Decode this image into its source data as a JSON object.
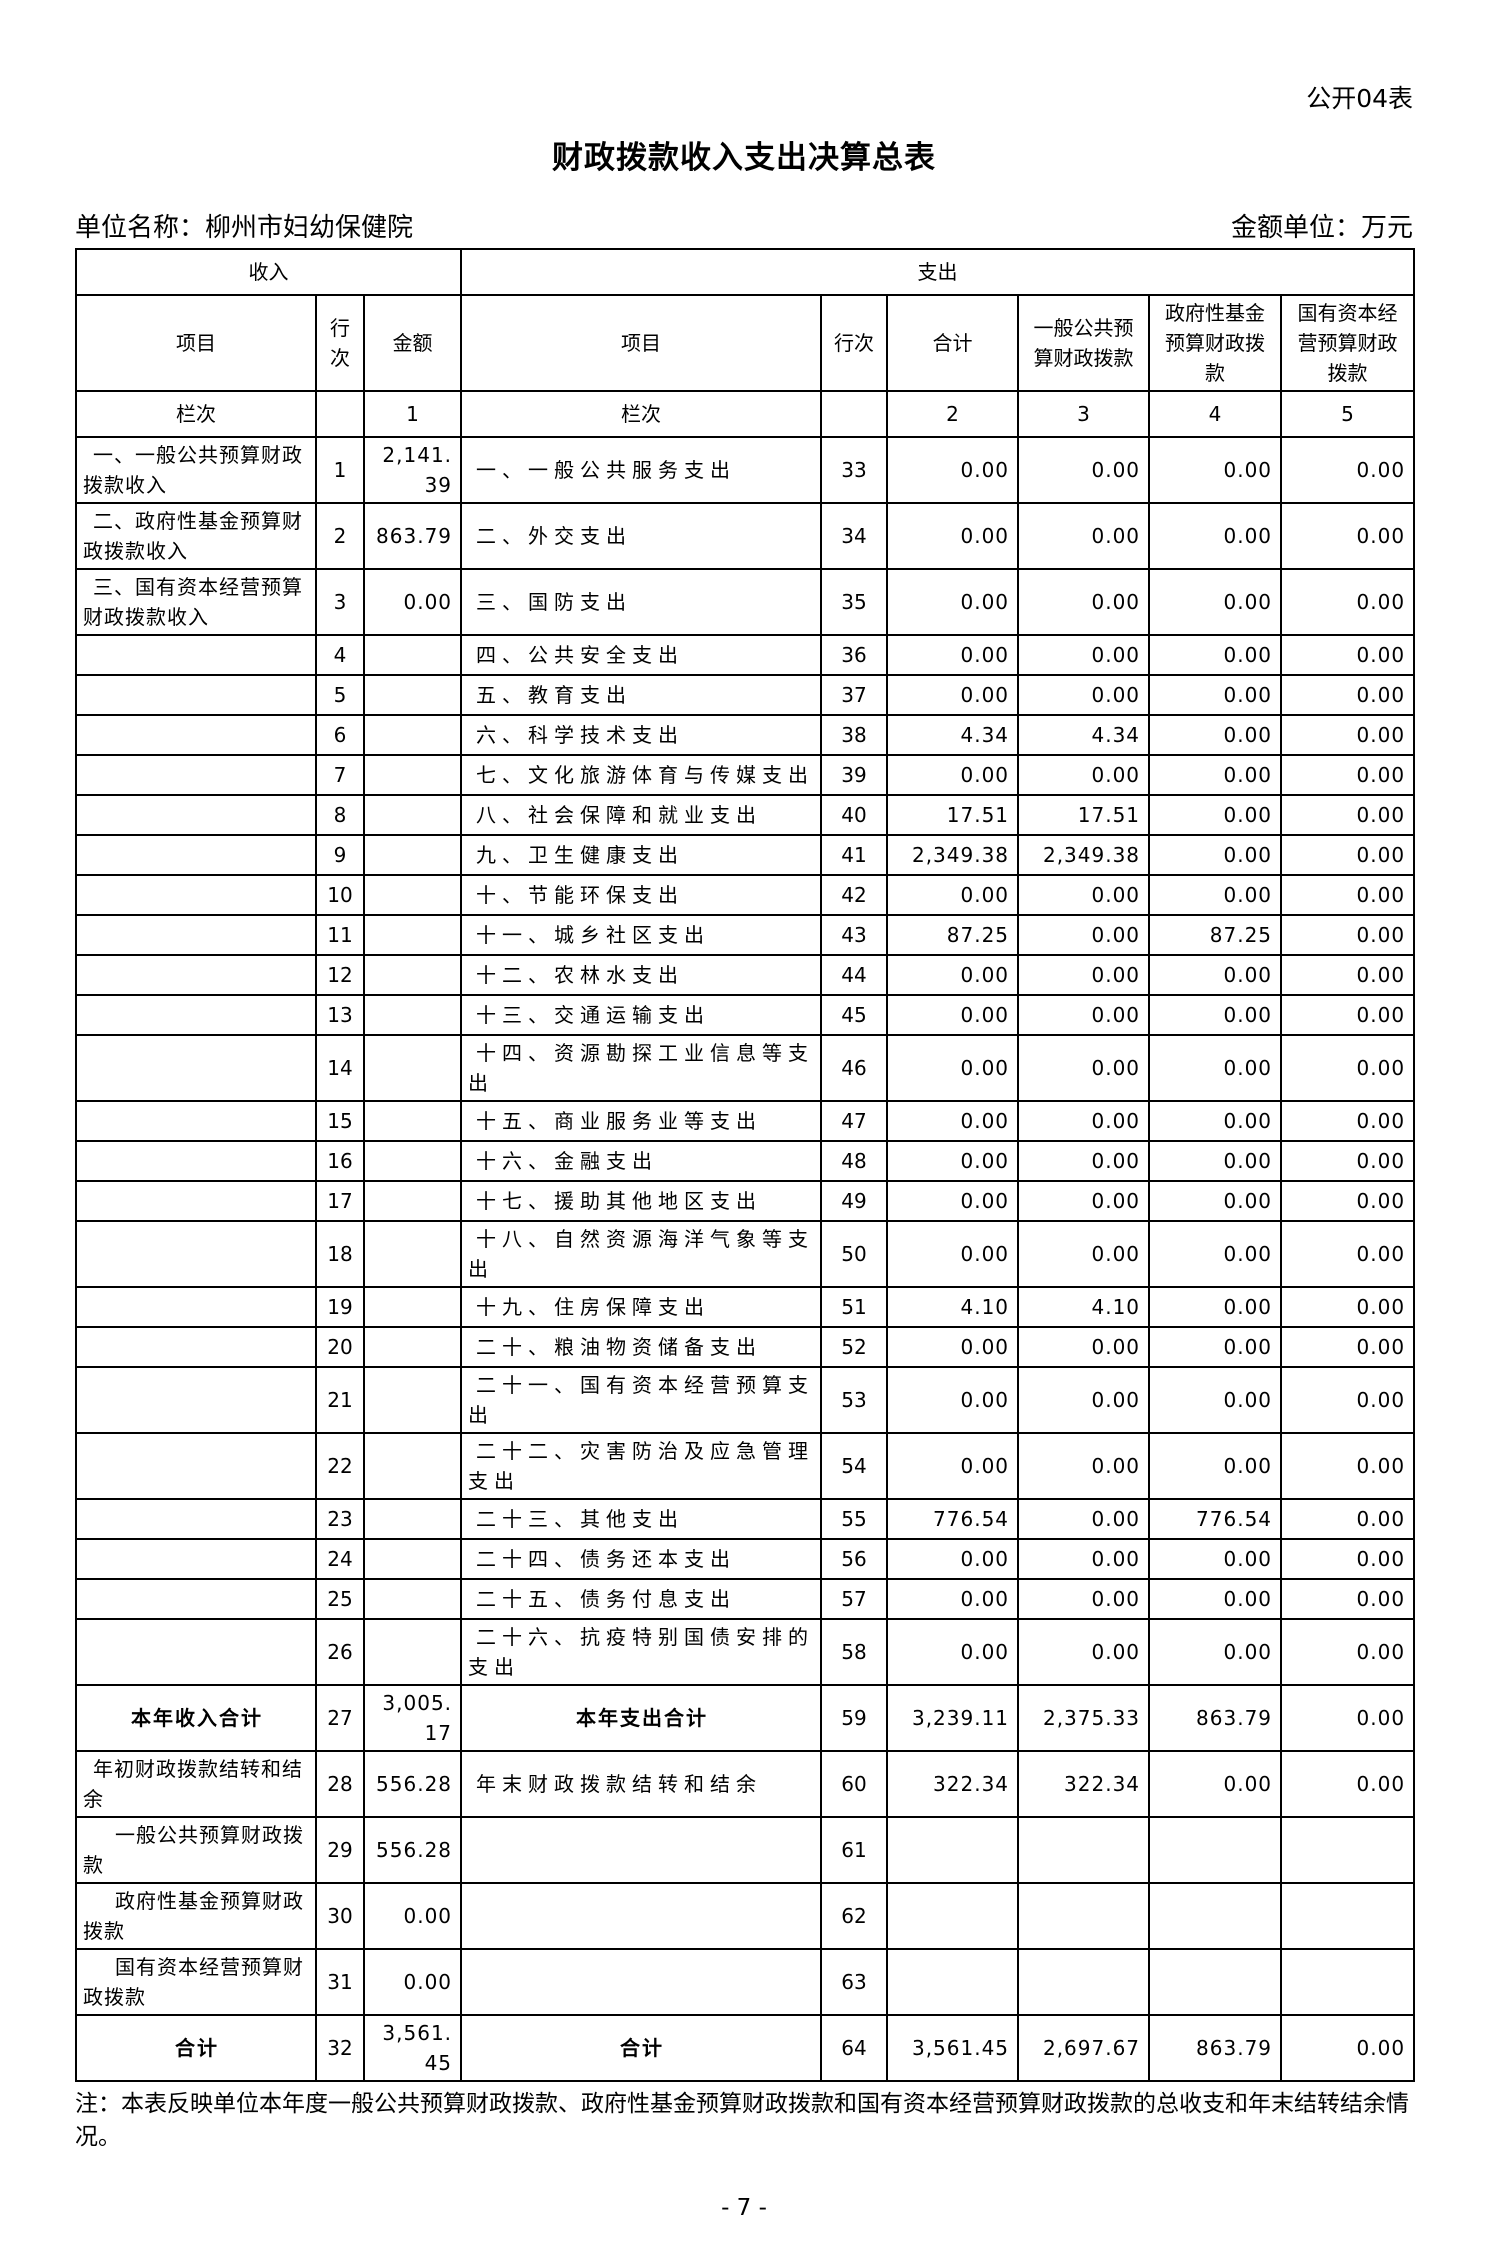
{
  "page": {
    "doc_label": "公开04表",
    "title": "财政拨款收入支出决算总表",
    "unit_label": "单位名称：柳州市妇幼保健院",
    "unit_hint": "金额单位：万元",
    "note": "注：本表反映单位本年度一般公共预算财政拨款、政府性基金预算财政拨款和国有资本经营预算财政拨款的总收支和年末结转结余情况。",
    "page_number": "- 7 -"
  },
  "table": {
    "sections": {
      "income": "收入",
      "expense": "支出"
    },
    "headers": {
      "income_item": "项目",
      "income_line": "行次",
      "income_amount": "金额",
      "expense_item": "项目",
      "expense_line": "行次",
      "total": "合计",
      "general_budget": "一般公共预算财政拨款",
      "gov_fund": "政府性基金预算财政拨款",
      "state_capital": "国有资本经营预算财政拨款"
    },
    "column_index_row": {
      "income_label": "栏次",
      "income_line": "",
      "income_amount": "1",
      "expense_label": "栏次",
      "expense_line": "",
      "total": "2",
      "general": "3",
      "fund": "4",
      "capital": "5"
    },
    "rows": [
      {
        "income_item": "一、一般公共预算财政拨款收入",
        "income_line": "1",
        "income_amount": "2,141.39",
        "expense_item": "一、一般公共服务支出",
        "expense_line": "33",
        "total": "0.00",
        "general": "0.00",
        "fund": "0.00",
        "capital": "0.00"
      },
      {
        "income_item": "二、政府性基金预算财政拨款收入",
        "income_line": "2",
        "income_amount": "863.79",
        "expense_item": "二、外交支出",
        "expense_line": "34",
        "total": "0.00",
        "general": "0.00",
        "fund": "0.00",
        "capital": "0.00"
      },
      {
        "income_item": "三、国有资本经营预算财政拨款收入",
        "income_line": "3",
        "income_amount": "0.00",
        "expense_item": "三、国防支出",
        "expense_line": "35",
        "total": "0.00",
        "general": "0.00",
        "fund": "0.00",
        "capital": "0.00"
      },
      {
        "income_item": "",
        "income_line": "4",
        "income_amount": "",
        "expense_item": "四、公共安全支出",
        "expense_line": "36",
        "total": "0.00",
        "general": "0.00",
        "fund": "0.00",
        "capital": "0.00"
      },
      {
        "income_item": "",
        "income_line": "5",
        "income_amount": "",
        "expense_item": "五、教育支出",
        "expense_line": "37",
        "total": "0.00",
        "general": "0.00",
        "fund": "0.00",
        "capital": "0.00"
      },
      {
        "income_item": "",
        "income_line": "6",
        "income_amount": "",
        "expense_item": "六、科学技术支出",
        "expense_line": "38",
        "total": "4.34",
        "general": "4.34",
        "fund": "0.00",
        "capital": "0.00"
      },
      {
        "income_item": "",
        "income_line": "7",
        "income_amount": "",
        "expense_item": "七、文化旅游体育与传媒支出",
        "expense_line": "39",
        "total": "0.00",
        "general": "0.00",
        "fund": "0.00",
        "capital": "0.00"
      },
      {
        "income_item": "",
        "income_line": "8",
        "income_amount": "",
        "expense_item": "八、社会保障和就业支出",
        "expense_line": "40",
        "total": "17.51",
        "general": "17.51",
        "fund": "0.00",
        "capital": "0.00"
      },
      {
        "income_item": "",
        "income_line": "9",
        "income_amount": "",
        "expense_item": "九、卫生健康支出",
        "expense_line": "41",
        "total": "2,349.38",
        "general": "2,349.38",
        "fund": "0.00",
        "capital": "0.00"
      },
      {
        "income_item": "",
        "income_line": "10",
        "income_amount": "",
        "expense_item": "十、节能环保支出",
        "expense_line": "42",
        "total": "0.00",
        "general": "0.00",
        "fund": "0.00",
        "capital": "0.00"
      },
      {
        "income_item": "",
        "income_line": "11",
        "income_amount": "",
        "expense_item": "十一、城乡社区支出",
        "expense_line": "43",
        "total": "87.25",
        "general": "0.00",
        "fund": "87.25",
        "capital": "0.00"
      },
      {
        "income_item": "",
        "income_line": "12",
        "income_amount": "",
        "expense_item": "十二、农林水支出",
        "expense_line": "44",
        "total": "0.00",
        "general": "0.00",
        "fund": "0.00",
        "capital": "0.00"
      },
      {
        "income_item": "",
        "income_line": "13",
        "income_amount": "",
        "expense_item": "十三、交通运输支出",
        "expense_line": "45",
        "total": "0.00",
        "general": "0.00",
        "fund": "0.00",
        "capital": "0.00"
      },
      {
        "income_item": "",
        "income_line": "14",
        "income_amount": "",
        "expense_item": "十四、资源勘探工业信息等支出",
        "expense_line": "46",
        "total": "0.00",
        "general": "0.00",
        "fund": "0.00",
        "capital": "0.00"
      },
      {
        "income_item": "",
        "income_line": "15",
        "income_amount": "",
        "expense_item": "十五、商业服务业等支出",
        "expense_line": "47",
        "total": "0.00",
        "general": "0.00",
        "fund": "0.00",
        "capital": "0.00"
      },
      {
        "income_item": "",
        "income_line": "16",
        "income_amount": "",
        "expense_item": "十六、金融支出",
        "expense_line": "48",
        "total": "0.00",
        "general": "0.00",
        "fund": "0.00",
        "capital": "0.00"
      },
      {
        "income_item": "",
        "income_line": "17",
        "income_amount": "",
        "expense_item": "十七、援助其他地区支出",
        "expense_line": "49",
        "total": "0.00",
        "general": "0.00",
        "fund": "0.00",
        "capital": "0.00"
      },
      {
        "income_item": "",
        "income_line": "18",
        "income_amount": "",
        "expense_item": "十八、自然资源海洋气象等支出",
        "expense_line": "50",
        "total": "0.00",
        "general": "0.00",
        "fund": "0.00",
        "capital": "0.00"
      },
      {
        "income_item": "",
        "income_line": "19",
        "income_amount": "",
        "expense_item": "十九、住房保障支出",
        "expense_line": "51",
        "total": "4.10",
        "general": "4.10",
        "fund": "0.00",
        "capital": "0.00"
      },
      {
        "income_item": "",
        "income_line": "20",
        "income_amount": "",
        "expense_item": "二十、粮油物资储备支出",
        "expense_line": "52",
        "total": "0.00",
        "general": "0.00",
        "fund": "0.00",
        "capital": "0.00"
      },
      {
        "income_item": "",
        "income_line": "21",
        "income_amount": "",
        "expense_item": "二十一、国有资本经营预算支出",
        "expense_line": "53",
        "total": "0.00",
        "general": "0.00",
        "fund": "0.00",
        "capital": "0.00"
      },
      {
        "income_item": "",
        "income_line": "22",
        "income_amount": "",
        "expense_item": "二十二、灾害防治及应急管理支出",
        "expense_line": "54",
        "total": "0.00",
        "general": "0.00",
        "fund": "0.00",
        "capital": "0.00"
      },
      {
        "income_item": "",
        "income_line": "23",
        "income_amount": "",
        "expense_item": "二十三、其他支出",
        "expense_line": "55",
        "total": "776.54",
        "general": "0.00",
        "fund": "776.54",
        "capital": "0.00"
      },
      {
        "income_item": "",
        "income_line": "24",
        "income_amount": "",
        "expense_item": "二十四、债务还本支出",
        "expense_line": "56",
        "total": "0.00",
        "general": "0.00",
        "fund": "0.00",
        "capital": "0.00"
      },
      {
        "income_item": "",
        "income_line": "25",
        "income_amount": "",
        "expense_item": "二十五、债务付息支出",
        "expense_line": "57",
        "total": "0.00",
        "general": "0.00",
        "fund": "0.00",
        "capital": "0.00"
      },
      {
        "income_item": "",
        "income_line": "26",
        "income_amount": "",
        "expense_item": "二十六、抗疫特别国债安排的支出",
        "expense_line": "58",
        "total": "0.00",
        "general": "0.00",
        "fund": "0.00",
        "capital": "0.00"
      },
      {
        "income_item": "本年收入合计",
        "income_line": "27",
        "income_amount": "3,005.17",
        "expense_item": "本年支出合计",
        "expense_line": "59",
        "total": "3,239.11",
        "general": "2,375.33",
        "fund": "863.79",
        "capital": "0.00",
        "bold": true
      },
      {
        "income_item": "年初财政拨款结转和结余",
        "income_line": "28",
        "income_amount": "556.28",
        "expense_item": "年末财政拨款结转和结余",
        "expense_line": "60",
        "total": "322.34",
        "general": "322.34",
        "fund": "0.00",
        "capital": "0.00"
      },
      {
        "income_item": "一般公共预算财政拨款",
        "income_line": "29",
        "income_amount": "556.28",
        "expense_item": "",
        "expense_line": "61",
        "total": "",
        "general": "",
        "fund": "",
        "capital": "",
        "sub": true
      },
      {
        "income_item": "政府性基金预算财政拨款",
        "income_line": "30",
        "income_amount": "0.00",
        "expense_item": "",
        "expense_line": "62",
        "total": "",
        "general": "",
        "fund": "",
        "capital": "",
        "sub": true
      },
      {
        "income_item": "国有资本经营预算财政拨款",
        "income_line": "31",
        "income_amount": "0.00",
        "expense_item": "",
        "expense_line": "63",
        "total": "",
        "general": "",
        "fund": "",
        "capital": "",
        "sub": true
      },
      {
        "income_item": "合计",
        "income_line": "32",
        "income_amount": "3,561.45",
        "expense_item": "合计",
        "expense_line": "64",
        "total": "3,561.45",
        "general": "2,697.67",
        "fund": "863.79",
        "capital": "0.00",
        "bold": true
      }
    ]
  }
}
